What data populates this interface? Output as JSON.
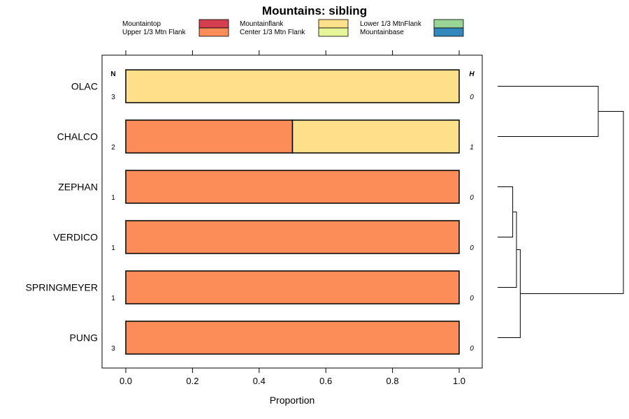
{
  "chart_data": {
    "type": "bar",
    "orientation": "horizontal",
    "stacked": true,
    "title": "Mountains: sibling",
    "xlabel": "Proportion",
    "ylabel": "",
    "xlim": [
      -0.07,
      1.07
    ],
    "xticks": [
      0.0,
      0.2,
      0.4,
      0.6,
      0.8,
      1.0
    ],
    "xtick_labels": [
      "0.0",
      "0.2",
      "0.4",
      "0.6",
      "0.8",
      "1.0"
    ],
    "n_header": "N",
    "h_header": "H",
    "legend": [
      {
        "label": "Mountaintop",
        "color": "#d53e4f"
      },
      {
        "label": "Upper 1/3 Mtn Flank",
        "color": "#fc8d59"
      },
      {
        "label": "Mountainflank",
        "color": "#fee08b"
      },
      {
        "label": "Center 1/3 Mtn Flank",
        "color": "#e6f598"
      },
      {
        "label": "Lower 1/3 MtnFlank",
        "color": "#99d594"
      },
      {
        "label": "Mountainbase",
        "color": "#3288bd"
      }
    ],
    "categories": [
      "OLAC",
      "CHALCO",
      "ZEPHAN",
      "VERDICO",
      "SPRINGMEYER",
      "PUNG"
    ],
    "n_values": [
      "3",
      "2",
      "1",
      "1",
      "1",
      "3"
    ],
    "h_values": [
      "0",
      "1",
      "0",
      "0",
      "0",
      "0"
    ],
    "series": [
      {
        "name": "Mountaintop",
        "values": [
          0,
          0,
          0,
          0,
          0,
          0
        ]
      },
      {
        "name": "Upper 1/3 Mtn Flank",
        "values": [
          0,
          0.5,
          1,
          1,
          1,
          1
        ]
      },
      {
        "name": "Mountainflank",
        "values": [
          1,
          0.5,
          0,
          0,
          0,
          0
        ]
      },
      {
        "name": "Center 1/3 Mtn Flank",
        "values": [
          0,
          0,
          0,
          0,
          0,
          0
        ]
      },
      {
        "name": "Lower 1/3 MtnFlank",
        "values": [
          0,
          0,
          0,
          0,
          0,
          0
        ]
      },
      {
        "name": "Mountainbase",
        "values": [
          0,
          0,
          0,
          0,
          0,
          0
        ]
      }
    ],
    "dendrogram": {
      "leaves": [
        "OLAC",
        "CHALCO",
        "ZEPHAN",
        "VERDICO",
        "SPRINGMEYER",
        "PUNG"
      ],
      "merges": [
        {
          "left": "ZEPHAN",
          "right": "VERDICO",
          "height": 0.12
        },
        {
          "left": "m0",
          "right": "SPRINGMEYER",
          "height": 0.15
        },
        {
          "left": "m1",
          "right": "PUNG",
          "height": 0.18
        },
        {
          "left": "OLAC",
          "right": "CHALCO",
          "height": 0.8
        },
        {
          "left": "m3",
          "right": "m2",
          "height": 1.0
        }
      ]
    }
  }
}
